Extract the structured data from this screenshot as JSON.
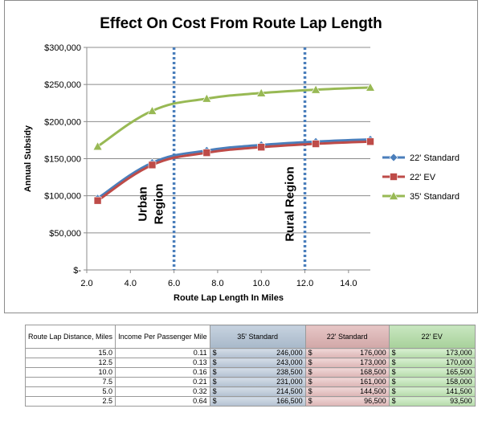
{
  "chart_data": {
    "type": "line",
    "title": "Effect On Cost From Route Lap Length",
    "xlabel": "Route Lap Length In Miles",
    "ylabel": "Annual Subsidy",
    "xlim": [
      2.0,
      15.0
    ],
    "ylim": [
      0,
      300000
    ],
    "x_ticks": [
      "2.0",
      "4.0",
      "6.0",
      "8.0",
      "10.0",
      "12.0",
      "14.0"
    ],
    "x_tick_values": [
      2,
      4,
      6,
      8,
      10,
      12,
      14
    ],
    "y_ticks": [
      "$-",
      "$50,000",
      "$100,000",
      "$150,000",
      "$200,000",
      "$250,000",
      "$300,000"
    ],
    "y_tick_values": [
      0,
      50000,
      100000,
      150000,
      200000,
      250000,
      300000
    ],
    "x": [
      2.5,
      5.0,
      7.5,
      10.0,
      12.5,
      15.0
    ],
    "series": [
      {
        "name": "22' Standard",
        "values": [
          96500,
          144500,
          161000,
          168500,
          173000,
          176000
        ],
        "color": "#4a7ebb",
        "marker": "diamond"
      },
      {
        "name": "22' EV",
        "values": [
          93500,
          141500,
          158000,
          165500,
          170000,
          173000
        ],
        "color": "#be4b48",
        "marker": "square"
      },
      {
        "name": "35' Standard",
        "values": [
          166500,
          214500,
          231000,
          238500,
          243000,
          246000
        ],
        "color": "#98b954",
        "marker": "triangle"
      }
    ],
    "vertical_lines": [
      {
        "x": 6.0,
        "label_lines": [
          "Urban",
          "Region"
        ],
        "color": "#4a7ebb"
      },
      {
        "x": 12.0,
        "label_lines": [
          "Rural Region"
        ],
        "color": "#4a7ebb"
      }
    ],
    "grid": true,
    "legend_position": "right"
  },
  "table": {
    "headers": [
      "Route Lap Distance, Miles",
      "Income Per Passenger Mile",
      "35' Standard",
      "22' Standard",
      "22' EV"
    ],
    "currency_symbol": "$",
    "rows": [
      {
        "distance": "15.0",
        "income": "0.11",
        "s35": "246,000",
        "s22": "176,000",
        "ev22": "173,000"
      },
      {
        "distance": "12.5",
        "income": "0.13",
        "s35": "243,000",
        "s22": "173,000",
        "ev22": "170,000"
      },
      {
        "distance": "10.0",
        "income": "0.16",
        "s35": "238,500",
        "s22": "168,500",
        "ev22": "165,500"
      },
      {
        "distance": "7.5",
        "income": "0.21",
        "s35": "231,000",
        "s22": "161,000",
        "ev22": "158,000"
      },
      {
        "distance": "5.0",
        "income": "0.32",
        "s35": "214,500",
        "s22": "144,500",
        "ev22": "141,500"
      },
      {
        "distance": "2.5",
        "income": "0.64",
        "s35": "166,500",
        "s22": "96,500",
        "ev22": "93,500"
      }
    ]
  }
}
